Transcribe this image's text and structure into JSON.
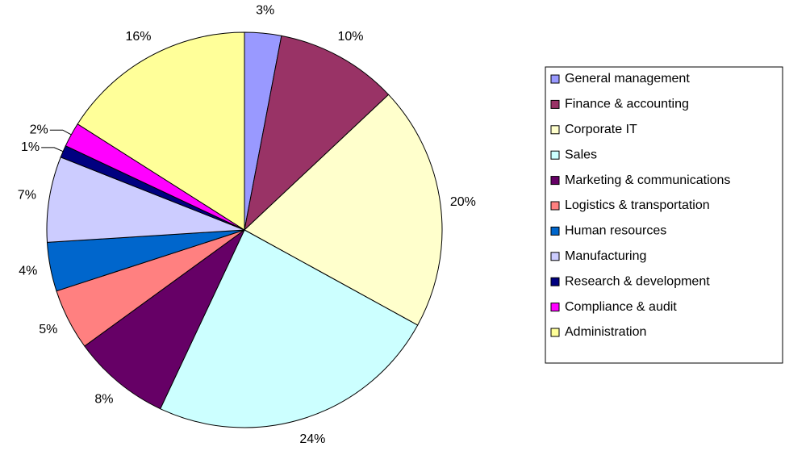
{
  "chart_data": {
    "type": "pie",
    "categories": [
      "General management",
      "Finance & accounting",
      "Corporate IT",
      "Sales",
      "Marketing & communications",
      "Logistics & transportation",
      "Human resources",
      "Manufacturing",
      "Research & development",
      "Compliance & audit",
      "Administration"
    ],
    "values": [
      3,
      10,
      20,
      24,
      8,
      5,
      4,
      7,
      1,
      2,
      16
    ],
    "value_labels": [
      "3%",
      "10%",
      "20%",
      "24%",
      "8%",
      "5%",
      "4%",
      "7%",
      "1%",
      "2%",
      "16%"
    ],
    "colors": [
      "#9999ff",
      "#993366",
      "#ffffcc",
      "#ccffff",
      "#660066",
      "#ff8080",
      "#0066cc",
      "#ccccff",
      "#000080",
      "#ff00ff",
      "#ffff99"
    ],
    "legend": "right"
  }
}
